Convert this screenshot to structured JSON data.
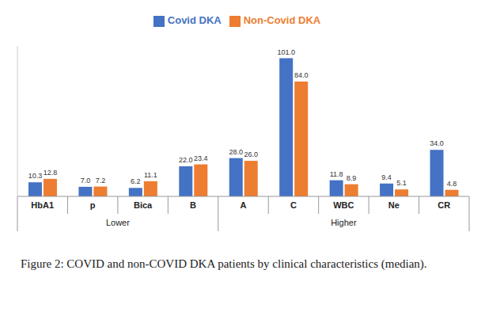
{
  "chart_data": {
    "type": "bar",
    "caption": "Figure 2: COVID and non-COVID DKA patients by clinical characteristics (median).",
    "categories": [
      "HbA1",
      "p",
      "Bica",
      "B",
      "A",
      "C",
      "WBC",
      "Ne",
      "CR"
    ],
    "groups": [
      "Lower",
      "Lower",
      "Lower",
      "Lower",
      "Higher",
      "Higher",
      "Higher",
      "Higher",
      "Higher"
    ],
    "series": [
      {
        "name": "Covid DKA",
        "color": "#4472c4",
        "values": [
          10.3,
          7.0,
          6.2,
          22.0,
          28.0,
          101.0,
          11.8,
          9.4,
          34.0
        ],
        "value_labels": [
          "10.3",
          "7.0",
          "6.2",
          "22.0",
          "28.0",
          "101.0",
          "11.8",
          "9.4",
          "34.0"
        ]
      },
      {
        "name": "Non-Covid DKA",
        "color": "#ed7d31",
        "values": [
          12.8,
          7.2,
          11.1,
          23.4,
          26.0,
          84.0,
          8.9,
          5.1,
          4.8
        ],
        "value_labels": [
          "12.8",
          "7.2",
          "11.1",
          "23.4",
          "26.0",
          "84.0",
          "8.9",
          "5.1",
          "4.8"
        ]
      }
    ],
    "ylim": [
      0,
      110
    ],
    "yticks": [],
    "tick_labels": "x",
    "data_labels": true,
    "legend": "top",
    "grid": false
  }
}
